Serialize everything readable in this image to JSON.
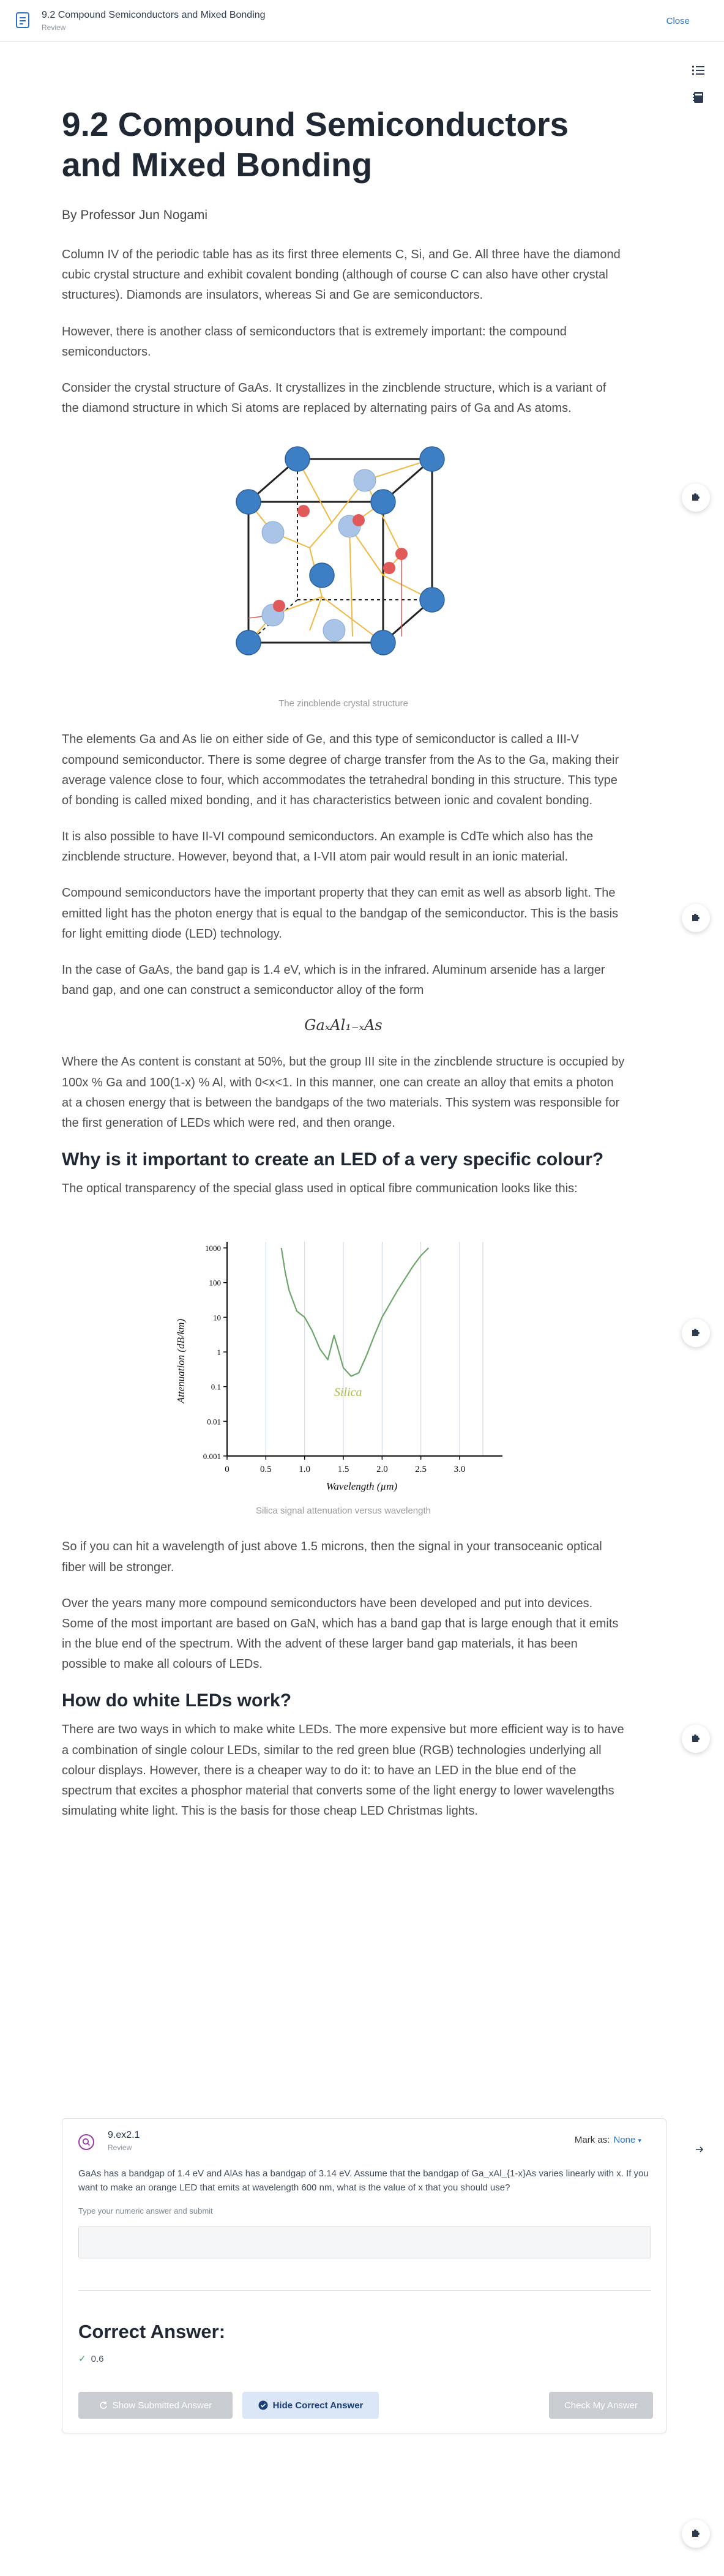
{
  "header": {
    "title": "9.2 Compound Semiconductors and Mixed Bonding",
    "subtitle": "Review",
    "close_label": "Close"
  },
  "article": {
    "title": "9.2 Compound Semiconductors and Mixed Bonding",
    "byline": "By Professor Jun Nogami",
    "p1": "Column IV of the periodic table has as its first three elements C, Si, and Ge. All three have the diamond cubic crystal structure and exhibit covalent bonding (although of course C can also have other crystal structures). Diamonds are insulators, whereas Si and Ge are semiconductors.",
    "p2": "However, there is another class of semiconductors that is extremely important: the compound semiconductors.",
    "p3": "Consider the crystal structure of GaAs. It crystallizes in the zincblende structure, which is a variant of the diamond structure in which Si atoms are replaced by alternating pairs of Ga and As atoms.",
    "fig1_caption": "The zincblende crystal structure",
    "p4": "The elements Ga and As lie on either side of Ge, and this type of semiconductor is called a III-V compound semiconductor. There is some degree of charge transfer from the As to the Ga, making their average valence close to four, which accommodates the tetrahedral bonding in this structure. This type of bonding is called mixed bonding, and it has characteristics between ionic and covalent bonding.",
    "p5": "It is also possible to have II-VI compound semiconductors. An example is CdTe which also has the zincblende structure. However, beyond that, a I-VII atom pair would result in an ionic material.",
    "p6": "Compound semiconductors have the important property that they can emit as well as absorb light. The emitted light has the photon energy that is equal to the bandgap of the semiconductor. This is the basis for light emitting diode (LED) technology.",
    "p7": "In the case of GaAs, the band gap is 1.4 eV, which is in the infrared. Aluminum arsenide has a larger band gap, and one can construct a semiconductor alloy of the form",
    "formula": "GaₓAl₁₋ₓAs",
    "p8": "Where the As content is constant at 50%, but the group III site in the zincblende structure is occupied by 100x % Ga and 100(1-x) % Al, with 0<x<1. In this manner, one can create an alloy that emits a photon at a chosen energy that is between the bandgaps of the two materials. This system was responsible for the first generation of LEDs which were red, and then orange.",
    "h2_1": "Why is it important to create an LED of a very specific colour?",
    "p9": "The optical transparency of the special glass used in optical fibre communication looks like this:",
    "fig2_caption": "Silica signal attenuation versus wavelength",
    "p10": "So if you can hit a wavelength of just above 1.5 microns, then the signal in your transoceanic optical fiber will be stronger.",
    "p11": "Over the years many more compound semiconductors have been developed and put into devices. Some of the most important are based on GaN, which has a band gap that is large enough that it emits in the blue end of the spectrum. With the advent of these larger band gap materials, it has been possible to make all colours of LEDs.",
    "h2_2": "How do white LEDs work?",
    "p12": "There are two ways in which to make white LEDs. The more expensive but more efficient way is to have a combination of single colour LEDs, similar to the red green blue (RGB) technologies underlying all colour displays. However, there is a cheaper way to do it: to have an LED in the blue end of the spectrum that excites a phosphor material that converts some of the light energy to lower wavelengths simulating white light. This is the basis for those cheap LED Christmas lights."
  },
  "chart_data": {
    "type": "line",
    "title": "",
    "xlabel": "Wavelength (µm)",
    "ylabel": "Attenuation (dB/km)",
    "x_ticks": [
      "0",
      "0.5",
      "1.0",
      "1.5",
      "2.0",
      "2.5",
      "3.0"
    ],
    "y_ticks": [
      "0.001",
      "0.01",
      "0.1",
      "1",
      "10",
      "100",
      "1000"
    ],
    "xlim": [
      0,
      3.0
    ],
    "ylim": [
      0.001,
      1000
    ],
    "y_scale": "log",
    "annotation": "Silica",
    "series": [
      {
        "name": "",
        "x": [
          0.7,
          0.75,
          0.8,
          0.9,
          1.0,
          1.1,
          1.2,
          1.3,
          1.38,
          1.42,
          1.5,
          1.6,
          1.7,
          1.8,
          1.9,
          2.0,
          2.2,
          2.4,
          2.5,
          2.6
        ],
        "y": [
          1000,
          200,
          60,
          15,
          10,
          4,
          1.2,
          0.6,
          3,
          1.5,
          0.35,
          0.2,
          0.25,
          0.8,
          3,
          10,
          60,
          300,
          600,
          1000
        ]
      }
    ],
    "color": "#6aa56a",
    "grid": "vertical"
  },
  "question": {
    "id": "9.ex2.1",
    "status": "Review",
    "mark_as_label": "Mark as:",
    "mark_as_value": "None",
    "text": "GaAs has a bandgap of 1.4 eV and AlAs has a bandgap of 3.14 eV. Assume that the bandgap of Ga_xAl_{1-x}As varies linearly with x. If you want to make an orange LED that emits at wavelength 600 nm, what is the value of x that you should use?",
    "hint": "Type your numeric answer and submit",
    "input_value": "",
    "correct_answer_title": "Correct Answer:",
    "correct_answer_value": "0.6",
    "show_submitted_label": "Show Submitted Answer",
    "hide_correct_label": "Hide Correct Answer",
    "check_label": "Check My Answer"
  },
  "colors": {
    "link": "#2a6fc9",
    "atom_blue": "#3d7fc4",
    "atom_red": "#e05a5a",
    "plot_green": "#6aa56a"
  }
}
